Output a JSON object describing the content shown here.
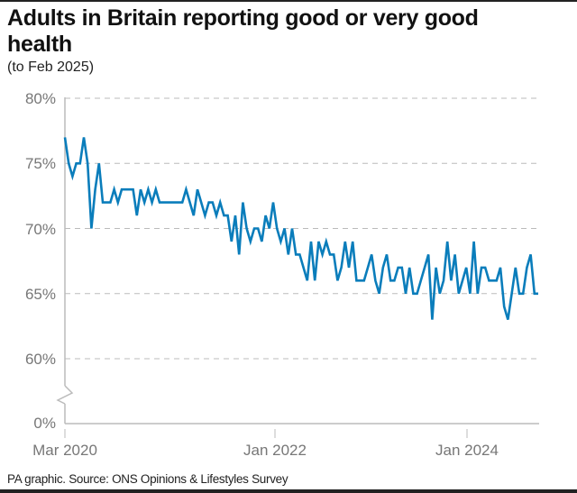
{
  "title": "Adults in Britain reporting good or very good health",
  "subtitle": "(to Feb 2025)",
  "source": "PA graphic. Source: ONS Opinions & Lifestyles Survey",
  "chart_data": {
    "type": "line",
    "title": "Adults in Britain reporting good or very good health",
    "subtitle": "(to Feb 2025)",
    "xlabel": "",
    "ylabel": "",
    "x_range": [
      "Mar 2020",
      "Feb 2025"
    ],
    "x_ticks": [
      "Mar 2020",
      "Jan 2022",
      "Jan 2024"
    ],
    "y_ticks": [
      "0%",
      "60%",
      "65%",
      "70%",
      "75%",
      "80%"
    ],
    "y_axis_break": "between 0% and 60%",
    "ylim": [
      60,
      80
    ],
    "grid": "horizontal dashed",
    "line_color": "#0a7dbb",
    "series": [
      {
        "values": [
          77,
          75,
          74,
          75,
          75,
          77,
          75,
          70,
          73,
          75,
          72,
          72,
          72,
          73,
          72,
          73,
          73,
          73,
          73,
          71,
          73,
          72,
          73,
          72,
          73,
          72,
          72,
          72,
          72,
          72,
          72,
          72,
          73,
          72,
          71,
          73,
          72,
          71,
          72,
          72,
          71,
          72,
          71,
          71,
          69,
          71,
          68,
          72,
          70,
          69,
          70,
          70,
          69,
          71,
          70,
          72,
          70,
          69,
          70,
          68,
          70,
          68,
          68,
          67,
          66,
          69,
          66,
          69,
          68,
          69,
          68,
          68,
          66,
          67,
          69,
          67,
          69,
          66,
          66,
          66,
          67,
          68,
          66,
          65,
          67,
          68,
          66,
          66,
          67,
          67,
          65,
          67,
          65,
          65,
          66,
          67,
          68,
          63,
          67,
          65,
          66,
          69,
          66,
          68,
          65,
          66,
          67,
          65,
          69,
          65,
          67,
          67,
          66,
          66,
          66,
          67,
          64,
          63,
          65,
          67,
          65,
          65,
          67,
          68,
          65,
          65
        ]
      }
    ]
  }
}
